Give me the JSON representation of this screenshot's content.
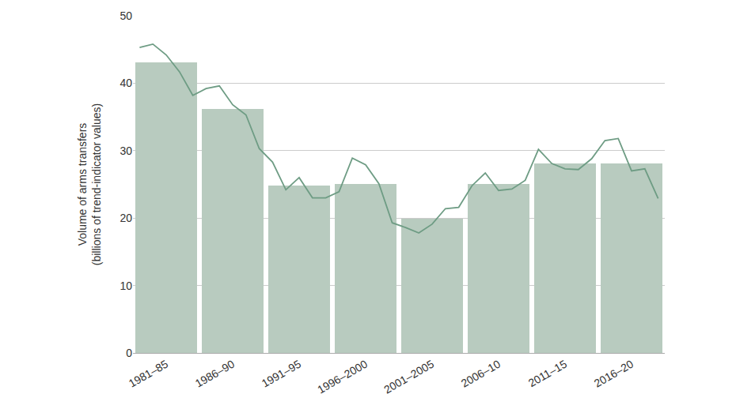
{
  "chart_data": {
    "type": "bar",
    "y_label": [
      "Volume of arms transfers",
      "(billions of trend-indicator values)"
    ],
    "xlim": [
      1980.5,
      2020.5
    ],
    "xticks": [
      {
        "value": 1983,
        "label": "1981–85"
      },
      {
        "value": 1988,
        "label": "1986–90"
      },
      {
        "value": 1993,
        "label": "1991–95"
      },
      {
        "value": 1998,
        "label": "1996–2000"
      },
      {
        "value": 2003,
        "label": "2001–2005"
      },
      {
        "value": 2008,
        "label": "2006–10"
      },
      {
        "value": 2013,
        "label": "2011–15"
      },
      {
        "value": 2018,
        "label": "2016–20"
      }
    ],
    "ylim": [
      0,
      50
    ],
    "yticks": [
      0,
      10,
      20,
      30,
      40,
      50
    ],
    "grid": true,
    "series": [
      {
        "type": "bar",
        "color": "#b8cbbf",
        "x": [
          1983,
          1988,
          1993,
          1998,
          2003,
          2008,
          2013,
          2018
        ],
        "values": [
          43.1,
          36.2,
          24.8,
          25.1,
          19.9,
          25.1,
          28.1,
          28.1
        ]
      },
      {
        "type": "line",
        "color": "#6e9c84",
        "x": [
          1981,
          1982,
          1983,
          1984,
          1985,
          1986,
          1987,
          1988,
          1989,
          1990,
          1991,
          1992,
          1993,
          1994,
          1995,
          1996,
          1997,
          1998,
          1999,
          2000,
          2001,
          2002,
          2003,
          2004,
          2005,
          2006,
          2007,
          2008,
          2009,
          2010,
          2011,
          2012,
          2013,
          2014,
          2015,
          2016,
          2017,
          2018,
          2019,
          2020
        ],
        "values": [
          45.3,
          45.8,
          44.2,
          41.7,
          38.2,
          39.2,
          39.6,
          36.8,
          35.3,
          30.3,
          28.3,
          24.2,
          26.0,
          23.0,
          23.0,
          23.9,
          28.9,
          27.9,
          25.1,
          19.3,
          18.6,
          17.8,
          19.1,
          21.4,
          21.6,
          24.8,
          26.7,
          24.1,
          24.3,
          25.6,
          30.2,
          28.1,
          27.3,
          27.2,
          28.8,
          31.5,
          31.8,
          27.0,
          27.3,
          22.9
        ]
      }
    ]
  }
}
